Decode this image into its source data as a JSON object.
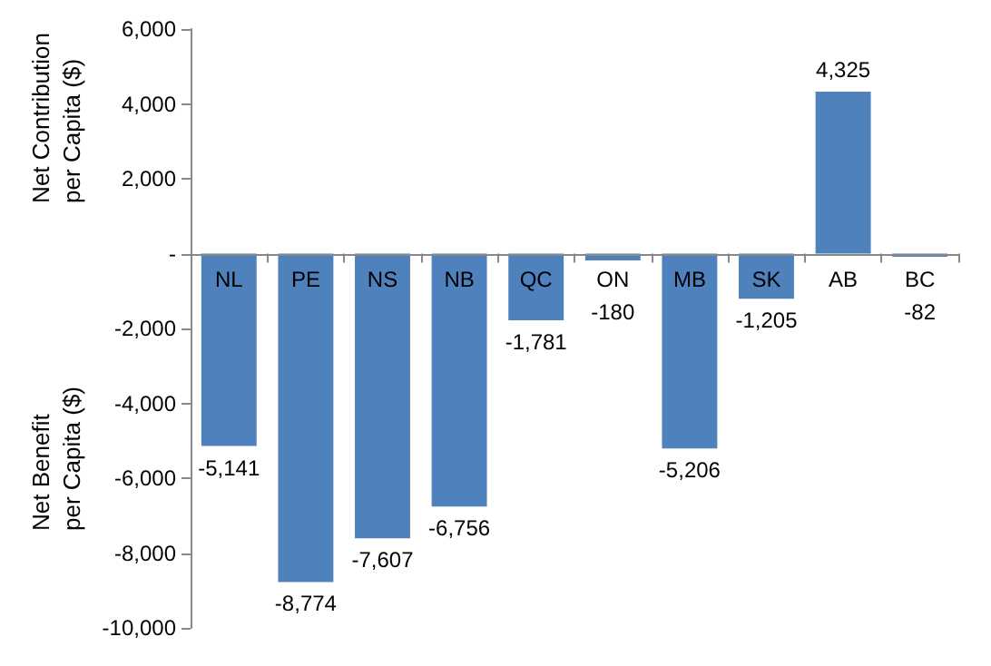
{
  "chart_data": {
    "type": "bar",
    "ylabel": "Net Contribution\nper Capita ($)",
    "annotations": [
      "Net Benefit\nper Capita ($)"
    ],
    "categories": [
      "NL",
      "PE",
      "NS",
      "NB",
      "QC",
      "ON",
      "MB",
      "SK",
      "AB",
      "BC"
    ],
    "values": [
      -5141,
      -8774,
      -7607,
      -6756,
      -1781,
      -180,
      -5206,
      -1205,
      4325,
      -82
    ],
    "value_labels": [
      "-5,141",
      "-8,774",
      "-7,607",
      "-6,756",
      "-1,781",
      "-180",
      "-5,206",
      "-1,205",
      "4,325",
      "-82"
    ],
    "color": "#4f81bd",
    "ylim": [
      -10000,
      6000
    ],
    "yticks": [
      {
        "value": -10000,
        "label": "-10,000"
      },
      {
        "value": -8000,
        "label": "-8,000"
      },
      {
        "value": -6000,
        "label": "-6,000"
      },
      {
        "value": -4000,
        "label": "-4,000"
      },
      {
        "value": -2000,
        "label": "-2,000"
      },
      {
        "value": 0,
        "label": "-"
      },
      {
        "value": 2000,
        "label": "2,000"
      },
      {
        "value": 4000,
        "label": "4,000"
      },
      {
        "value": 6000,
        "label": "6,000"
      }
    ]
  }
}
